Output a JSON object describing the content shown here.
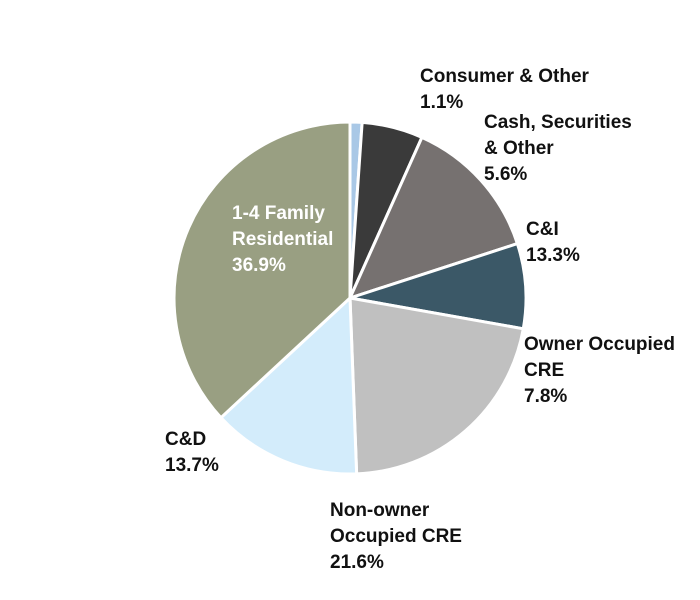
{
  "chart_data": {
    "type": "pie",
    "title": "",
    "slices": [
      {
        "label": "Consumer & Other",
        "lines": [
          "Consumer & Other",
          "1.1%"
        ],
        "value": 1.1,
        "color": "#a9c8e6"
      },
      {
        "label": "Cash, Securities & Other",
        "lines": [
          "Cash, Securities",
          "& Other",
          "5.6%"
        ],
        "value": 5.6,
        "color": "#3a3a3a"
      },
      {
        "label": "C&I",
        "lines": [
          "C&I",
          "13.3%"
        ],
        "value": 13.3,
        "color": "#767170"
      },
      {
        "label": "Owner Occupied CRE",
        "lines": [
          "Owner Occupied",
          "CRE",
          "7.8%"
        ],
        "value": 7.8,
        "color": "#3b5867"
      },
      {
        "label": "Non-owner Occupied CRE",
        "lines": [
          "Non-owner",
          "Occupied CRE",
          "21.6%"
        ],
        "value": 21.6,
        "color": "#c0c0c0"
      },
      {
        "label": "C&D",
        "lines": [
          "C&D",
          "13.7%"
        ],
        "value": 13.7,
        "color": "#d3ecfb"
      },
      {
        "label": "1-4 Family Residential",
        "lines": [
          "1-4 Family",
          "Residential",
          "36.9%"
        ],
        "value": 36.9,
        "color": "#999f82",
        "label_inside": true
      }
    ],
    "start_clockwise_from_top": true,
    "legend": "none"
  }
}
